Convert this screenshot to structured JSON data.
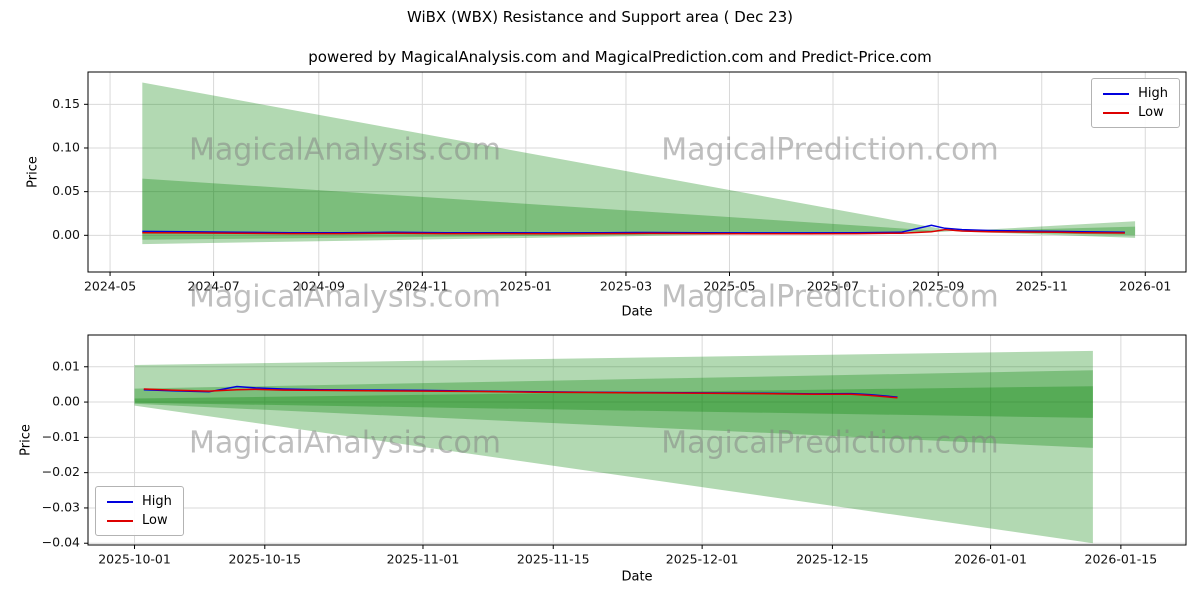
{
  "title": "WiBX (WBX) Resistance and Support area ( Dec 23)",
  "subtitle": "powered by MagicalAnalysis.com and MagicalPrediction.com and Predict-Price.com",
  "watermarks": {
    "left": "MagicalAnalysis.com",
    "right": "MagicalPrediction.com"
  },
  "legend": {
    "high": "High",
    "low": "Low"
  },
  "colors": {
    "high": "#0000dd",
    "low": "#dd0000",
    "band": "#008000",
    "grid": "#d9d9d9",
    "spine": "#000000"
  },
  "chart_data": [
    {
      "type": "line",
      "xlabel": "Date",
      "ylabel": "Price",
      "xlim": [
        "2024-04-18",
        "2026-01-25"
      ],
      "ylim": [
        -0.042,
        0.187
      ],
      "xticks": [
        {
          "label": "2024-05",
          "date": "2024-05-01"
        },
        {
          "label": "2024-07",
          "date": "2024-07-01"
        },
        {
          "label": "2024-09",
          "date": "2024-09-01"
        },
        {
          "label": "2024-11",
          "date": "2024-11-01"
        },
        {
          "label": "2025-01",
          "date": "2025-01-01"
        },
        {
          "label": "2025-03",
          "date": "2025-03-01"
        },
        {
          "label": "2025-05",
          "date": "2025-05-01"
        },
        {
          "label": "2025-07",
          "date": "2025-07-01"
        },
        {
          "label": "2025-09",
          "date": "2025-09-01"
        },
        {
          "label": "2025-11",
          "date": "2025-11-01"
        },
        {
          "label": "2026-01",
          "date": "2026-01-01"
        }
      ],
      "yticks": [
        {
          "label": "0.15",
          "value": 0.15
        },
        {
          "label": "0.10",
          "value": 0.1
        },
        {
          "label": "0.05",
          "value": 0.05
        },
        {
          "label": "0.00",
          "value": 0.0
        }
      ],
      "bands": [
        {
          "name": "resistance-wedge-outer",
          "points": [
            [
              "2024-05-20",
              0.175
            ],
            [
              "2025-09-10",
              0.005
            ],
            [
              "2024-05-20",
              -0.01
            ]
          ]
        },
        {
          "name": "resistance-wedge-inner",
          "points": [
            [
              "2024-05-20",
              0.065
            ],
            [
              "2025-09-10",
              0.004
            ],
            [
              "2024-05-20",
              -0.005
            ]
          ]
        },
        {
          "name": "forecast-wedge-outer",
          "points": [
            [
              "2025-09-10",
              0.0045
            ],
            [
              "2025-12-26",
              0.016
            ],
            [
              "2025-12-26",
              -0.003
            ]
          ]
        },
        {
          "name": "forecast-wedge-inner",
          "points": [
            [
              "2025-09-10",
              0.0045
            ],
            [
              "2025-12-26",
              0.01
            ],
            [
              "2025-12-26",
              0.0
            ]
          ]
        }
      ],
      "series": [
        {
          "name": "High",
          "color_key": "high",
          "points": [
            [
              "2024-05-20",
              0.0045
            ],
            [
              "2024-06-15",
              0.004
            ],
            [
              "2024-07-15",
              0.0035
            ],
            [
              "2024-08-15",
              0.003
            ],
            [
              "2024-09-15",
              0.003
            ],
            [
              "2024-10-15",
              0.0035
            ],
            [
              "2024-11-15",
              0.003
            ],
            [
              "2024-12-15",
              0.003
            ],
            [
              "2025-01-15",
              0.0028
            ],
            [
              "2025-02-15",
              0.003
            ],
            [
              "2025-03-15",
              0.0032
            ],
            [
              "2025-04-15",
              0.003
            ],
            [
              "2025-05-15",
              0.0028
            ],
            [
              "2025-06-15",
              0.0028
            ],
            [
              "2025-07-15",
              0.003
            ],
            [
              "2025-08-10",
              0.0035
            ],
            [
              "2025-08-28",
              0.0115
            ],
            [
              "2025-09-05",
              0.008
            ],
            [
              "2025-09-15",
              0.0065
            ],
            [
              "2025-10-01",
              0.0055
            ],
            [
              "2025-10-20",
              0.005
            ],
            [
              "2025-11-10",
              0.0045
            ],
            [
              "2025-11-25",
              0.004
            ],
            [
              "2025-12-20",
              0.0035
            ]
          ]
        },
        {
          "name": "Low",
          "color_key": "low",
          "points": [
            [
              "2024-05-20",
              0.003
            ],
            [
              "2024-06-15",
              0.0028
            ],
            [
              "2024-07-15",
              0.0024
            ],
            [
              "2024-08-15",
              0.002
            ],
            [
              "2024-09-15",
              0.002
            ],
            [
              "2024-10-15",
              0.0024
            ],
            [
              "2024-11-15",
              0.002
            ],
            [
              "2024-12-15",
              0.002
            ],
            [
              "2025-01-15",
              0.0018
            ],
            [
              "2025-02-15",
              0.002
            ],
            [
              "2025-03-15",
              0.0022
            ],
            [
              "2025-04-15",
              0.002
            ],
            [
              "2025-05-15",
              0.0018
            ],
            [
              "2025-06-15",
              0.0018
            ],
            [
              "2025-07-15",
              0.002
            ],
            [
              "2025-08-10",
              0.0024
            ],
            [
              "2025-08-28",
              0.004
            ],
            [
              "2025-09-05",
              0.0065
            ],
            [
              "2025-09-15",
              0.005
            ],
            [
              "2025-10-01",
              0.0042
            ],
            [
              "2025-10-20",
              0.0038
            ],
            [
              "2025-11-10",
              0.0034
            ],
            [
              "2025-11-25",
              0.003
            ],
            [
              "2025-12-20",
              0.0026
            ]
          ]
        }
      ],
      "legend_pos": "top-right"
    },
    {
      "type": "line",
      "xlabel": "Date",
      "ylabel": "Price",
      "xlim": [
        "2025-09-26",
        "2026-01-22"
      ],
      "ylim": [
        -0.0405,
        0.019
      ],
      "xticks": [
        {
          "label": "2025-10-01",
          "date": "2025-10-01"
        },
        {
          "label": "2025-10-15",
          "date": "2025-10-15"
        },
        {
          "label": "2025-11-01",
          "date": "2025-11-01"
        },
        {
          "label": "2025-11-15",
          "date": "2025-11-15"
        },
        {
          "label": "2025-12-01",
          "date": "2025-12-01"
        },
        {
          "label": "2025-12-15",
          "date": "2025-12-15"
        },
        {
          "label": "2026-01-01",
          "date": "2026-01-01"
        },
        {
          "label": "2026-01-15",
          "date": "2026-01-15"
        }
      ],
      "yticks": [
        {
          "label": "0.01",
          "value": 0.01
        },
        {
          "label": "0.00",
          "value": 0.0
        },
        {
          "label": "−0.01",
          "value": -0.01
        },
        {
          "label": "−0.02",
          "value": -0.02
        },
        {
          "label": "−0.03",
          "value": -0.03
        },
        {
          "label": "−0.04",
          "value": -0.04
        }
      ],
      "bands": [
        {
          "name": "support-band-outer",
          "points": [
            [
              "2025-10-01",
              0.0105
            ],
            [
              "2026-01-12",
              0.0145
            ],
            [
              "2026-01-12",
              -0.04
            ],
            [
              "2025-10-01",
              -0.001
            ]
          ]
        },
        {
          "name": "support-band-mid",
          "points": [
            [
              "2025-10-01",
              0.0038
            ],
            [
              "2026-01-12",
              0.009
            ],
            [
              "2026-01-12",
              -0.013
            ],
            [
              "2025-10-01",
              -0.0005
            ]
          ]
        },
        {
          "name": "support-band-inner",
          "points": [
            [
              "2025-10-01",
              0.001
            ],
            [
              "2026-01-12",
              0.0045
            ],
            [
              "2026-01-12",
              -0.0045
            ],
            [
              "2025-10-01",
              -0.0002
            ]
          ]
        }
      ],
      "series": [
        {
          "name": "High",
          "color_key": "high",
          "points": [
            [
              "2025-10-02",
              0.0035
            ],
            [
              "2025-10-05",
              0.0032
            ],
            [
              "2025-10-09",
              0.0029
            ],
            [
              "2025-10-12",
              0.0044
            ],
            [
              "2025-10-14",
              0.004
            ],
            [
              "2025-10-17",
              0.0037
            ],
            [
              "2025-10-21",
              0.0035
            ],
            [
              "2025-10-26",
              0.0034
            ],
            [
              "2025-11-01",
              0.0033
            ],
            [
              "2025-11-07",
              0.0031
            ],
            [
              "2025-11-13",
              0.0029
            ],
            [
              "2025-11-19",
              0.0028
            ],
            [
              "2025-11-25",
              0.0027
            ],
            [
              "2025-12-01",
              0.0026
            ],
            [
              "2025-12-07",
              0.0025
            ],
            [
              "2025-12-13",
              0.0023
            ],
            [
              "2025-12-17",
              0.0024
            ],
            [
              "2025-12-19",
              0.0021
            ],
            [
              "2025-12-22",
              0.0014
            ]
          ]
        },
        {
          "name": "Low",
          "color_key": "low",
          "points": [
            [
              "2025-10-02",
              0.0037
            ],
            [
              "2025-10-05",
              0.0034
            ],
            [
              "2025-10-09",
              0.0031
            ],
            [
              "2025-10-12",
              0.0035
            ],
            [
              "2025-10-14",
              0.0036
            ],
            [
              "2025-10-17",
              0.0034
            ],
            [
              "2025-10-21",
              0.0033
            ],
            [
              "2025-10-26",
              0.0032
            ],
            [
              "2025-11-01",
              0.0031
            ],
            [
              "2025-11-07",
              0.003
            ],
            [
              "2025-11-13",
              0.0028
            ],
            [
              "2025-11-19",
              0.0027
            ],
            [
              "2025-11-25",
              0.0026
            ],
            [
              "2025-12-01",
              0.0025
            ],
            [
              "2025-12-07",
              0.0024
            ],
            [
              "2025-12-13",
              0.0022
            ],
            [
              "2025-12-17",
              0.0022
            ],
            [
              "2025-12-19",
              0.0019
            ],
            [
              "2025-12-22",
              0.0012
            ]
          ]
        }
      ],
      "legend_pos": "bottom-left"
    }
  ]
}
